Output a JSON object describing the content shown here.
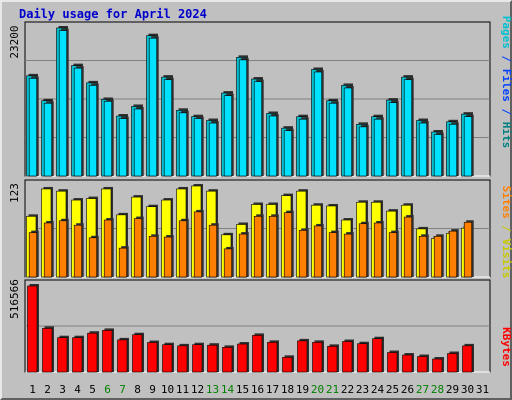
{
  "title": "Daily usage for April 2024",
  "colors": {
    "background": "#c0c0c0",
    "grid": "#808080",
    "pages": "#00c0d0",
    "files": "#00e0ff",
    "visits": "#ffff00",
    "sites": "#ff8000",
    "kbytes": "#ff0000",
    "label_pages": "#00c0d0",
    "label_files": "#0040ff",
    "label_hits": "#008080",
    "label_visits": "#c8c800",
    "label_sites": "#ff8000",
    "label_kbytes": "#ff0000",
    "weekday_label": "#000000",
    "weekend_label": "#008000"
  },
  "chart_data": [
    {
      "type": "bar",
      "name": "hits_files_pages",
      "y_max_label": "23200",
      "ylim": [
        0,
        23200
      ],
      "right_label_parts": [
        {
          "text": "Pages",
          "color_key": "label_pages"
        },
        {
          "text": " / ",
          "color_key": "label_files"
        },
        {
          "text": "Files",
          "color_key": "label_files"
        },
        {
          "text": " / ",
          "color_key": "label_files"
        },
        {
          "text": "Hits",
          "color_key": "label_hits"
        }
      ],
      "categories": [
        "1",
        "2",
        "3",
        "4",
        "5",
        "6",
        "7",
        "8",
        "9",
        "10",
        "11",
        "12",
        "13",
        "14",
        "15",
        "16",
        "17",
        "18",
        "19",
        "20",
        "21",
        "22",
        "23",
        "24",
        "25",
        "26",
        "27",
        "28",
        "29",
        "30",
        "31"
      ],
      "series": [
        {
          "name": "Hits",
          "values": [
            15700,
            11800,
            23200,
            17300,
            14600,
            12000,
            9400,
            10900,
            22000,
            15500,
            10300,
            9300,
            8700,
            13000,
            18600,
            15200,
            9800,
            7500,
            9300,
            16700,
            11800,
            14200,
            8100,
            9300,
            11900,
            15500,
            8700,
            6900,
            8500,
            9700,
            0
          ]
        },
        {
          "name": "Files",
          "values": [
            15300,
            11400,
            22800,
            16900,
            14200,
            11700,
            9000,
            10500,
            21600,
            15100,
            9900,
            9000,
            8300,
            12600,
            18200,
            14800,
            9400,
            7100,
            8900,
            16300,
            11400,
            13800,
            7700,
            8900,
            11500,
            15100,
            8300,
            6500,
            8100,
            9300,
            0
          ]
        }
      ]
    },
    {
      "type": "bar",
      "name": "visits_sites",
      "y_max_label": "123",
      "ylim": [
        0,
        123
      ],
      "right_label_parts": [
        {
          "text": "Sites",
          "color_key": "label_sites"
        },
        {
          "text": " / ",
          "color_key": "label_visits"
        },
        {
          "text": "Visits",
          "color_key": "label_visits"
        }
      ],
      "categories": [
        "1",
        "2",
        "3",
        "4",
        "5",
        "6",
        "7",
        "8",
        "9",
        "10",
        "11",
        "12",
        "13",
        "14",
        "15",
        "16",
        "17",
        "18",
        "19",
        "20",
        "21",
        "22",
        "23",
        "24",
        "25",
        "26",
        "27",
        "28",
        "29",
        "30",
        "31"
      ],
      "series": [
        {
          "name": "Visits",
          "values": [
            82,
            119,
            116,
            104,
            106,
            119,
            84,
            108,
            95,
            104,
            119,
            123,
            116,
            57,
            71,
            98,
            98,
            110,
            116,
            97,
            96,
            77,
            101,
            101,
            89,
            97,
            65,
            52,
            59,
            66,
            0
          ]
        },
        {
          "name": "Sites",
          "values": [
            60,
            73,
            76,
            70,
            53,
            77,
            39,
            79,
            55,
            54,
            76,
            88,
            70,
            38,
            58,
            82,
            82,
            87,
            63,
            69,
            60,
            58,
            72,
            73,
            60,
            81,
            55,
            55,
            62,
            74,
            0
          ]
        }
      ]
    },
    {
      "type": "bar",
      "name": "kbytes",
      "y_max_label": "516566",
      "ylim": [
        0,
        516566
      ],
      "right_label_parts": [
        {
          "text": "KBytes",
          "color_key": "label_kbytes"
        }
      ],
      "categories": [
        "1",
        "2",
        "3",
        "4",
        "5",
        "6",
        "7",
        "8",
        "9",
        "10",
        "11",
        "12",
        "13",
        "14",
        "15",
        "16",
        "17",
        "18",
        "19",
        "20",
        "21",
        "22",
        "23",
        "24",
        "25",
        "26",
        "27",
        "28",
        "29",
        "30",
        "31"
      ],
      "series": [
        {
          "name": "KBytes",
          "values": [
            516566,
            262000,
            206000,
            206000,
            233000,
            250000,
            193000,
            224000,
            177000,
            164000,
            157000,
            164000,
            161000,
            148000,
            168000,
            220000,
            178000,
            88000,
            187000,
            178000,
            154000,
            183000,
            170000,
            200000,
            117000,
            102000,
            93000,
            78000,
            111000,
            157000,
            0
          ]
        }
      ]
    }
  ],
  "x_ticks": [
    {
      "label": "1",
      "weekend": false
    },
    {
      "label": "2",
      "weekend": false
    },
    {
      "label": "3",
      "weekend": false
    },
    {
      "label": "4",
      "weekend": false
    },
    {
      "label": "5",
      "weekend": false
    },
    {
      "label": "6",
      "weekend": true
    },
    {
      "label": "7",
      "weekend": true
    },
    {
      "label": "8",
      "weekend": false
    },
    {
      "label": "9",
      "weekend": false
    },
    {
      "label": "10",
      "weekend": false
    },
    {
      "label": "11",
      "weekend": false
    },
    {
      "label": "12",
      "weekend": false
    },
    {
      "label": "13",
      "weekend": true
    },
    {
      "label": "14",
      "weekend": true
    },
    {
      "label": "15",
      "weekend": false
    },
    {
      "label": "16",
      "weekend": false
    },
    {
      "label": "17",
      "weekend": false
    },
    {
      "label": "18",
      "weekend": false
    },
    {
      "label": "19",
      "weekend": false
    },
    {
      "label": "20",
      "weekend": true
    },
    {
      "label": "21",
      "weekend": true
    },
    {
      "label": "22",
      "weekend": false
    },
    {
      "label": "23",
      "weekend": false
    },
    {
      "label": "24",
      "weekend": false
    },
    {
      "label": "25",
      "weekend": false
    },
    {
      "label": "26",
      "weekend": false
    },
    {
      "label": "27",
      "weekend": true
    },
    {
      "label": "28",
      "weekend": true
    },
    {
      "label": "29",
      "weekend": false
    },
    {
      "label": "30",
      "weekend": false
    },
    {
      "label": "31",
      "weekend": false
    }
  ]
}
